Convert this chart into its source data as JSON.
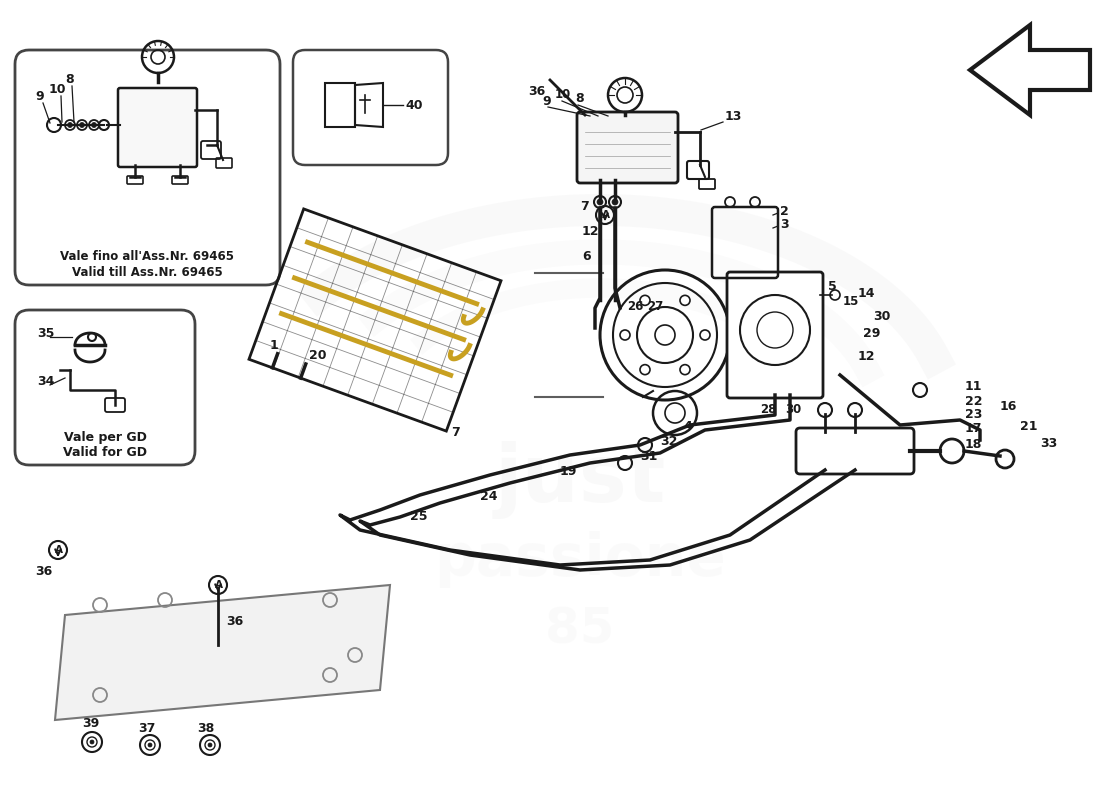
{
  "bg_color": "#ffffff",
  "lc": "#1a1a1a",
  "wc": "#cccccc",
  "box1_label1": "Vale fino all'Ass.Nr. 69465",
  "box1_label2": "Valid till Ass.Nr. 69465",
  "box2_label1": "Vale per GD",
  "box2_label2": "Valid for GD"
}
